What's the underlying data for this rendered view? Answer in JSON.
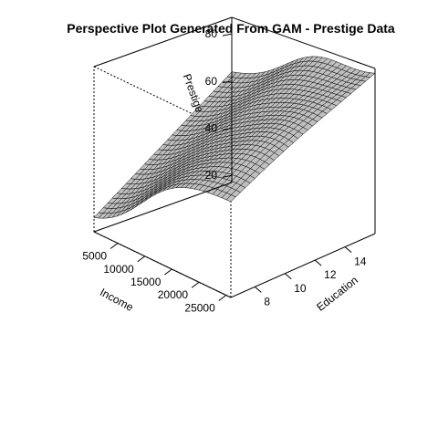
{
  "chart_data": {
    "type": "surface",
    "title": "Perspective Plot Generated From GAM - Prestige Data",
    "xlabel": "Income",
    "ylabel": "Education",
    "zlabel": "Prestige",
    "x_ticks": [
      5000,
      10000,
      15000,
      20000,
      25000
    ],
    "y_ticks": [
      8,
      10,
      12,
      14
    ],
    "z_ticks": [
      20,
      40,
      60,
      80
    ],
    "xlim": [
      611,
      25879
    ],
    "ylim": [
      6.4,
      16.0
    ],
    "zlim": [
      17,
      87
    ],
    "grid_resolution": 30,
    "surface_color": "#c0c0c0",
    "edge_color": "#000000",
    "corner_prestige": {
      "income_low_education_low": 20,
      "income_low_education_high": 62,
      "income_high_education_low": 58,
      "income_high_education_high": 86
    }
  }
}
